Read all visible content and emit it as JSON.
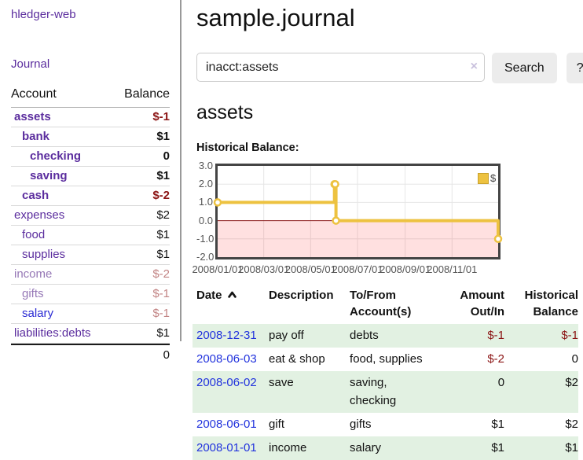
{
  "app": {
    "brand": "hledger-web",
    "nav_journal": "Journal"
  },
  "colors": {
    "purple_link": "#5b2d9e",
    "purple_soft": "#9678b6",
    "blue_link": "#2a2ad4",
    "date_blue": "#2233dd",
    "neg_strong": "#8b1414",
    "neg_soft": "#c28484",
    "row_green": "#e2f1e2",
    "chart_line": "#edc240",
    "chart_border": "#444444",
    "tick_text": "#545454",
    "btn_bg": "#ececec",
    "divider": "#999999"
  },
  "sidebar": {
    "table": {
      "col_account": "Account",
      "col_balance": "Balance"
    },
    "accounts": [
      {
        "name": "assets",
        "depth": 1,
        "balance": "$-1",
        "bold": true,
        "name_tone": "purple",
        "balance_tone": "neg-strong"
      },
      {
        "name": "bank",
        "depth": 2,
        "balance": "$1",
        "bold": true,
        "name_tone": "purple",
        "balance_tone": "normal"
      },
      {
        "name": "checking",
        "depth": 3,
        "balance": "0",
        "bold": true,
        "name_tone": "purple",
        "balance_tone": "normal"
      },
      {
        "name": "saving",
        "depth": 3,
        "balance": "$1",
        "bold": true,
        "name_tone": "purple",
        "balance_tone": "normal"
      },
      {
        "name": "cash",
        "depth": 2,
        "balance": "$-2",
        "bold": true,
        "name_tone": "purple",
        "balance_tone": "neg-strong"
      },
      {
        "name": "expenses",
        "depth": 1,
        "balance": "$2",
        "bold": false,
        "name_tone": "purple",
        "balance_tone": "normal"
      },
      {
        "name": "food",
        "depth": 2,
        "balance": "$1",
        "bold": false,
        "name_tone": "purple",
        "balance_tone": "normal"
      },
      {
        "name": "supplies",
        "depth": 2,
        "balance": "$1",
        "bold": false,
        "name_tone": "purple",
        "balance_tone": "normal"
      },
      {
        "name": "income",
        "depth": 1,
        "balance": "$-2",
        "bold": false,
        "name_tone": "purple-soft",
        "balance_tone": "neg-soft"
      },
      {
        "name": "gifts",
        "depth": 2,
        "balance": "$-1",
        "bold": false,
        "name_tone": "purple-soft",
        "balance_tone": "neg-soft"
      },
      {
        "name": "salary",
        "depth": 2,
        "balance": "$-1",
        "bold": false,
        "name_tone": "blue",
        "balance_tone": "neg-soft"
      },
      {
        "name": "liabilities:debts",
        "depth": 1,
        "balance": "$1",
        "bold": false,
        "name_tone": "purple",
        "balance_tone": "normal"
      }
    ],
    "total": "0"
  },
  "header": {
    "title": "sample.journal"
  },
  "search": {
    "value": "inacct:assets",
    "clear": "×",
    "button": "Search",
    "help": "?"
  },
  "content": {
    "heading": "assets",
    "chart_label": "Historical Balance:"
  },
  "chart_data": {
    "type": "line",
    "step": true,
    "title": "Historical Balance",
    "series": [
      {
        "name": "$",
        "color": "#edc240",
        "points": [
          {
            "date": "2008/01/01",
            "day": 0,
            "value": 1
          },
          {
            "date": "2008/06/01",
            "day": 152,
            "value": 2
          },
          {
            "date": "2008/06/02",
            "day": 153,
            "value": 2
          },
          {
            "date": "2008/06/03",
            "day": 154,
            "value": 0
          },
          {
            "date": "2008/12/31",
            "day": 365,
            "value": -1
          }
        ]
      }
    ],
    "x_ticks": [
      {
        "label": "2008/01/01",
        "day": 0
      },
      {
        "label": "2008/03/01",
        "day": 60
      },
      {
        "label": "2008/05/01",
        "day": 121
      },
      {
        "label": "2008/07/01",
        "day": 182
      },
      {
        "label": "2008/09/01",
        "day": 244
      },
      {
        "label": "2008/11/01",
        "day": 305
      }
    ],
    "y_ticks": [
      {
        "label": "3.0",
        "value": 3
      },
      {
        "label": "2.0",
        "value": 2
      },
      {
        "label": "1.0",
        "value": 1
      },
      {
        "label": "0.0",
        "value": 0
      },
      {
        "label": "-1.0",
        "value": -1
      },
      {
        "label": "-2.0",
        "value": -2
      }
    ],
    "x_range": [
      0,
      365
    ],
    "y_range": [
      -2,
      3
    ],
    "legend": {
      "label": "$",
      "position": "top-right"
    },
    "grid": true,
    "below_zero_fill": "rgba(255,0,0,0.12)",
    "zero_line_color": "#8b1a1a"
  },
  "register": {
    "headers": {
      "date": "Date",
      "description": "Description",
      "account": "To/From Account(s)",
      "amount": "Amount Out/In",
      "balance": "Historical Balance"
    },
    "rows": [
      {
        "date": "2008-12-31",
        "description": "pay off",
        "accounts": [
          "debts"
        ],
        "amount": "$-1",
        "amount_negative": true,
        "balance": "$-1",
        "balance_negative": true,
        "shaded": true
      },
      {
        "date": "2008-06-03",
        "description": "eat & shop",
        "accounts": [
          "food",
          "supplies"
        ],
        "amount": "$-2",
        "amount_negative": true,
        "balance": "0",
        "balance_negative": false,
        "shaded": false
      },
      {
        "date": "2008-06-02",
        "description": "save",
        "accounts": [
          "saving",
          "checking"
        ],
        "amount": "0",
        "amount_negative": false,
        "balance": "$2",
        "balance_negative": false,
        "shaded": true
      },
      {
        "date": "2008-06-01",
        "description": "gift",
        "accounts": [
          "gifts"
        ],
        "amount": "$1",
        "amount_negative": false,
        "balance": "$2",
        "balance_negative": false,
        "shaded": false
      },
      {
        "date": "2008-01-01",
        "description": "income",
        "accounts": [
          "salary"
        ],
        "amount": "$1",
        "amount_negative": false,
        "balance": "$1",
        "balance_negative": false,
        "shaded": true
      }
    ]
  }
}
